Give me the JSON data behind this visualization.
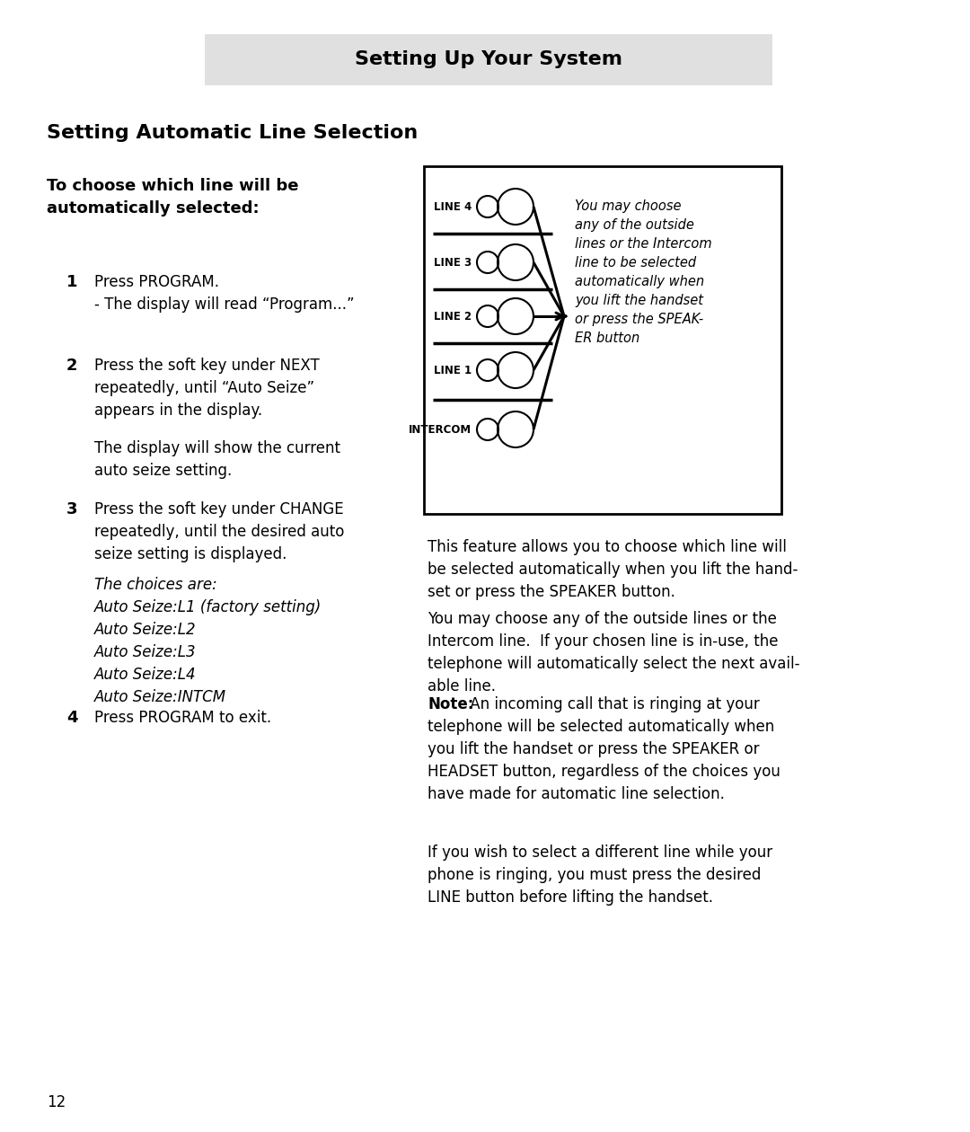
{
  "bg_color": "#ffffff",
  "header_bg": "#e0e0e0",
  "header_text": "Setting Up Your System",
  "section_title": "Setting Automatic Line Selection",
  "subsection_title": "To choose which line will be\nautomatically selected:",
  "diagram_lines": [
    "LINE 4",
    "LINE 3",
    "LINE 2",
    "LINE 1",
    "INTERCOM"
  ],
  "diagram_note": "You may choose\nany of the outside\nlines or the Intercom\nline to be selected\nautomatically when\nyou lift the handset\nor press the SPEAK-\nER button",
  "page_number": "12",
  "step1_num": "1",
  "step1_text": "Press PROGRAM.\n- The display will read “Program...”",
  "step2_num": "2",
  "step2_text": "Press the soft key under NEXT\nrepeatedly, until “Auto Seize”\nappears in the display.",
  "step2b_text": "The display will show the current\nauto seize setting.",
  "step3_num": "3",
  "step3_text": "Press the soft key under CHANGE\nrepeatedly, until the desired auto\nseize setting is displayed.",
  "step3b_text": "The choices are:\nAuto Seize:L1 (factory setting)\nAuto Seize:L2\nAuto Seize:L3\nAuto Seize:L4\nAuto Seize:INTCM",
  "step4_num": "4",
  "step4_text": "Press PROGRAM to exit.",
  "para1": "This feature allows you to choose which line will\nbe selected automatically when you lift the hand-\nset or press the SPEAKER button.",
  "para2": "You may choose any of the outside lines or the\nIntercom line.  If your chosen line is in-use, the\ntelephone will automatically select the next avail-\nable line.",
  "para3_bold": "Note:",
  "para3_rest": "  An incoming call that is ringing at your\ntelephone will be selected automatically when\nyou lift the handset or press the SPEAKER or\nHEADSET button, regardless of the choices you\nhave made for automatic line selection.",
  "para4": "If you wish to select a different line while your\nphone is ringing, you must press the desired\nLINE button before lifting the handset."
}
